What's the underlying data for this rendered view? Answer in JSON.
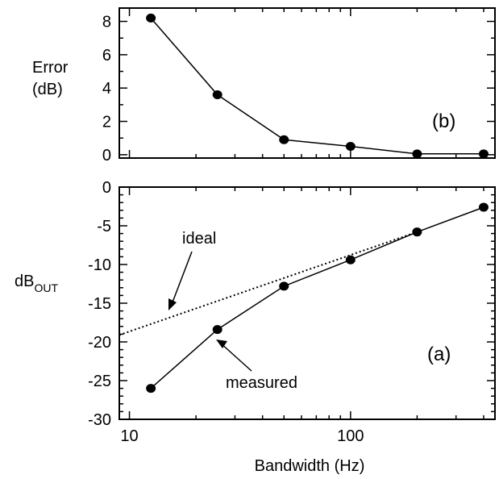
{
  "chart_data": [
    {
      "panel": "b",
      "type": "line",
      "tag": "(b)",
      "ylabel_line1": "Error",
      "ylabel_line2": "(dB)",
      "xscale": "log",
      "xlim": [
        9,
        450
      ],
      "ylim": [
        -0.2,
        8.8
      ],
      "yticks": [
        0,
        2,
        4,
        6,
        8
      ],
      "ytick_labels": [
        "0",
        "2",
        "4",
        "6",
        "8"
      ],
      "series": [
        {
          "x": [
            12.5,
            25,
            50,
            100,
            200,
            400
          ],
          "y": [
            8.2,
            3.6,
            0.9,
            0.5,
            0.05,
            0.05
          ]
        }
      ]
    },
    {
      "panel": "a",
      "type": "line",
      "tag": "(a)",
      "xlabel": "Bandwidth (Hz)",
      "ylabel_main": "dB",
      "ylabel_sub": "OUT",
      "xscale": "log",
      "xlim": [
        9,
        450
      ],
      "ylim": [
        -30,
        0
      ],
      "yticks": [
        0,
        -5,
        -10,
        -15,
        -20,
        -25,
        -30
      ],
      "ytick_labels": [
        "0",
        "-5",
        "-10",
        "-15",
        "-20",
        "-25",
        "-30"
      ],
      "xticks": [
        10,
        100
      ],
      "xtick_labels": [
        "10",
        "100"
      ],
      "series": [
        {
          "name": "measured",
          "style": "solid-markers",
          "x": [
            12.5,
            25,
            50,
            100,
            200,
            400
          ],
          "y": [
            -26,
            -18.4,
            -12.8,
            -9.4,
            -5.8,
            -2.6
          ]
        },
        {
          "name": "ideal",
          "style": "dotted",
          "x": [
            9,
            200
          ],
          "y": [
            -19.1,
            -5.8
          ]
        }
      ],
      "annotations": [
        {
          "text": "ideal"
        },
        {
          "text": "measured"
        }
      ]
    }
  ]
}
